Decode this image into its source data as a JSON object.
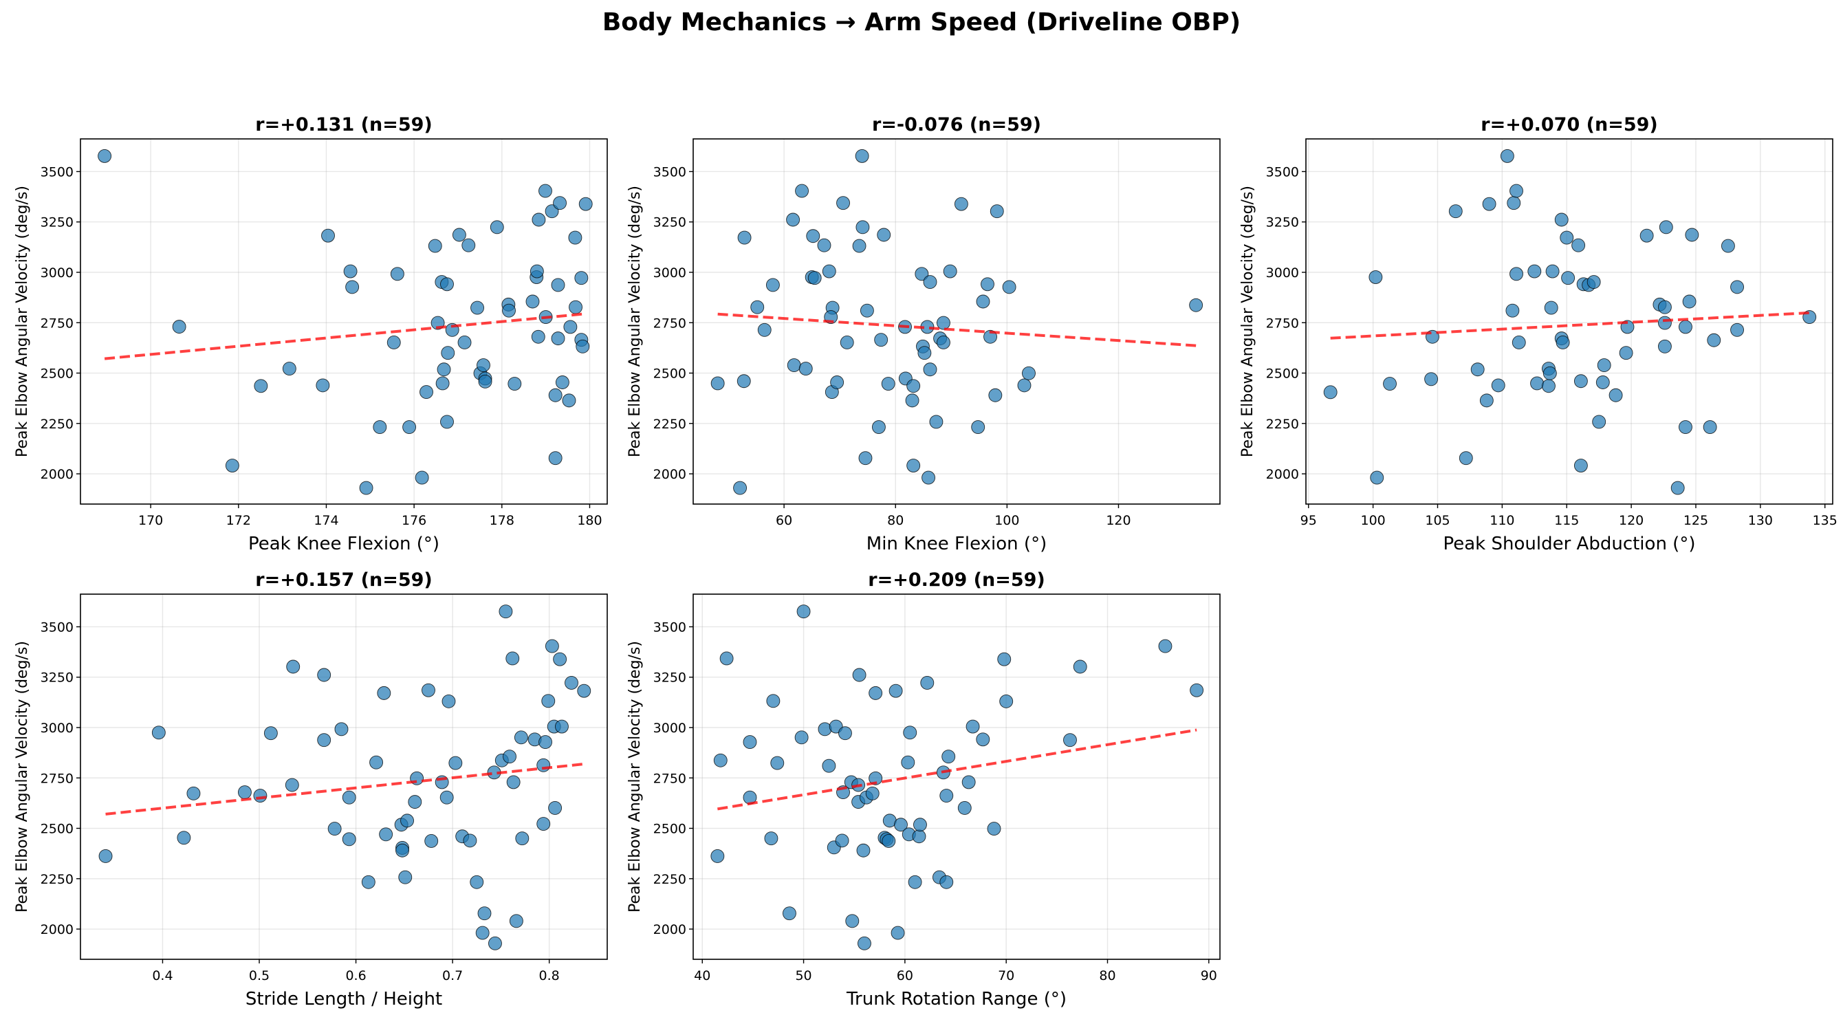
{
  "suptitle": "Body Mechanics → Arm Speed (Driveline OBP)",
  "colors": {
    "points": "#1f77b4",
    "point_edge": "#000000",
    "trendline": "#ff0000",
    "grid": "#b0b0b0"
  },
  "chart_data": [
    {
      "type": "scatter",
      "title": "r=+0.131  (n=59)",
      "xlabel": "Peak Knee Flexion (°)",
      "ylabel": "Peak Elbow Angular Velocity (deg/s)",
      "xlim": [
        168.4,
        180.4
      ],
      "ylim": [
        1850,
        3662
      ],
      "xticks": [
        170,
        172,
        174,
        176,
        178,
        180
      ],
      "yticks": [
        2000,
        2250,
        2500,
        2750,
        3000,
        3250,
        3500
      ],
      "grid": true,
      "trendline": "dashed linear fit",
      "x": [
        168.95,
        170.65,
        171.86,
        172.51,
        173.16,
        173.92,
        174.04,
        174.55,
        174.59,
        174.91,
        175.22,
        175.54,
        175.62,
        175.89,
        176.18,
        176.28,
        176.48,
        176.54,
        176.63,
        176.75,
        176.65,
        176.68,
        176.77,
        176.75,
        176.87,
        177.03,
        177.15,
        177.24,
        177.44,
        177.51,
        177.58,
        177.62,
        177.62,
        177.89,
        178.15,
        178.16,
        178.29,
        178.7,
        178.79,
        178.8,
        178.84,
        178.83,
        178.99,
        179.0,
        179.14,
        179.32,
        179.28,
        179.28,
        179.38,
        179.22,
        179.22,
        179.53,
        179.56,
        179.67,
        179.68,
        179.81,
        179.81,
        179.84,
        179.91
      ],
      "y": [
        3577,
        2730,
        2041,
        2436,
        2522,
        2439,
        3182,
        3005,
        2927,
        1930,
        2232,
        2652,
        2992,
        2232,
        1981,
        2406,
        3131,
        2749,
        2952,
        2941,
        2449,
        2518,
        2600,
        2258,
        2714,
        3186,
        2652,
        3134,
        2824,
        2499,
        2539,
        2473,
        2458,
        3224,
        2840,
        2810,
        2447,
        2855,
        2976,
        3005,
        3261,
        2680,
        3404,
        2778,
        3303,
        3344,
        2937,
        2672,
        2454,
        2390,
        2078,
        2364,
        2729,
        3172,
        2827,
        2972,
        2665,
        2632,
        3339
      ]
    },
    {
      "type": "scatter",
      "title": "r=-0.076  (n=59)",
      "xlabel": "Min Knee Flexion (°)",
      "ylabel": "Peak Elbow Angular Velocity (deg/s)",
      "xlim": [
        43.7,
        138.2
      ],
      "ylim": [
        1850,
        3662
      ],
      "xticks": [
        60,
        80,
        100,
        120
      ],
      "yticks": [
        2000,
        2250,
        2500,
        2750,
        3000,
        3250,
        3500
      ],
      "grid": true,
      "trendline": "dashed linear fit",
      "x": [
        48.1,
        52.1,
        52.8,
        52.9,
        55.2,
        56.5,
        58.0,
        61.6,
        61.8,
        63.2,
        63.9,
        65.0,
        65.5,
        65.2,
        67.2,
        68.1,
        68.7,
        68.4,
        68.6,
        69.5,
        70.6,
        71.3,
        73.5,
        74.0,
        74.1,
        74.6,
        74.9,
        77.0,
        77.4,
        77.9,
        78.7,
        81.7,
        81.8,
        83.2,
        83.0,
        83.2,
        84.7,
        84.9,
        85.2,
        85.7,
        85.9,
        86.2,
        86.2,
        87.3,
        88.0,
        88.6,
        88.6,
        89.8,
        91.8,
        94.8,
        95.7,
        96.5,
        97.0,
        97.9,
        98.2,
        100.4,
        103.1,
        103.9,
        133.9
      ],
      "y": [
        2449,
        1930,
        2460,
        3172,
        2827,
        2714,
        2937,
        3261,
        2539,
        3404,
        2522,
        2976,
        2972,
        3180,
        3134,
        3005,
        2824,
        2778,
        2406,
        2454,
        3344,
        2652,
        3131,
        3577,
        3224,
        2078,
        2810,
        2232,
        2665,
        3186,
        2447,
        2729,
        2473,
        2436,
        2364,
        2041,
        2992,
        2632,
        2600,
        2729,
        1981,
        2952,
        2518,
        2258,
        2672,
        2749,
        2652,
        3005,
        3339,
        2232,
        2855,
        2941,
        2680,
        2390,
        3303,
        2927,
        2439,
        2499,
        2837
      ]
    },
    {
      "type": "scatter",
      "title": "r=+0.070  (n=59)",
      "xlabel": "Peak Shoulder Abduction (°)",
      "ylabel": "Peak Elbow Angular Velocity (deg/s)",
      "xlim": [
        94.8,
        135.6
      ],
      "ylim": [
        1850,
        3662
      ],
      "xticks": [
        95,
        100,
        105,
        110,
        115,
        120,
        125,
        130,
        135
      ],
      "yticks": [
        2000,
        2250,
        2500,
        2750,
        3000,
        3250,
        3500
      ],
      "grid": true,
      "trendline": "dashed linear fit",
      "x": [
        96.7,
        100.2,
        100.3,
        101.3,
        104.5,
        104.6,
        106.4,
        107.2,
        108.1,
        108.8,
        109.0,
        109.7,
        110.4,
        110.8,
        110.9,
        111.1,
        111.1,
        111.3,
        112.5,
        112.7,
        113.6,
        113.6,
        113.7,
        113.8,
        113.9,
        114.6,
        114.6,
        114.7,
        115.0,
        115.1,
        115.9,
        116.1,
        116.1,
        116.3,
        116.7,
        117.1,
        117.5,
        117.8,
        117.9,
        118.8,
        119.6,
        119.7,
        121.2,
        122.2,
        122.6,
        122.6,
        122.6,
        122.7,
        123.6,
        124.2,
        124.2,
        124.5,
        124.7,
        126.1,
        126.4,
        127.5,
        128.2,
        128.2,
        133.8
      ],
      "y": [
        2405,
        2976,
        1981,
        2447,
        2470,
        2680,
        3303,
        2078,
        2518,
        2364,
        3339,
        2439,
        3577,
        2810,
        3344,
        2992,
        3404,
        2652,
        3005,
        2449,
        2522,
        2436,
        2499,
        2824,
        3005,
        2672,
        3261,
        2652,
        3172,
        2972,
        3134,
        2460,
        2041,
        2941,
        2937,
        2952,
        2258,
        2454,
        2539,
        2390,
        2600,
        2729,
        3182,
        2840,
        2632,
        2749,
        2827,
        3224,
        1930,
        2729,
        2232,
        2855,
        3186,
        2232,
        2663,
        3131,
        2927,
        2714,
        2778
      ]
    },
    {
      "type": "scatter",
      "title": "r=+0.157  (n=59)",
      "xlabel": "Stride Length / Height",
      "ylabel": "Peak Elbow Angular Velocity (deg/s)",
      "xlim": [
        0.315,
        0.86
      ],
      "ylim": [
        1850,
        3662
      ],
      "xticks": [
        0.4,
        0.5,
        0.6,
        0.7,
        0.8
      ],
      "yticks": [
        2000,
        2250,
        2500,
        2750,
        3000,
        3250,
        3500
      ],
      "grid": true,
      "trendline": "dashed linear fit",
      "x": [
        0.341,
        0.396,
        0.422,
        0.432,
        0.485,
        0.501,
        0.512,
        0.534,
        0.535,
        0.567,
        0.567,
        0.578,
        0.585,
        0.593,
        0.593,
        0.613,
        0.621,
        0.629,
        0.631,
        0.647,
        0.648,
        0.648,
        0.651,
        0.653,
        0.661,
        0.663,
        0.675,
        0.678,
        0.689,
        0.694,
        0.696,
        0.703,
        0.71,
        0.718,
        0.725,
        0.733,
        0.731,
        0.743,
        0.744,
        0.751,
        0.755,
        0.759,
        0.762,
        0.763,
        0.766,
        0.771,
        0.772,
        0.785,
        0.794,
        0.794,
        0.796,
        0.799,
        0.803,
        0.805,
        0.806,
        0.811,
        0.813,
        0.823,
        0.836
      ],
      "y": [
        2362,
        2975,
        2453,
        2673,
        2679,
        2662,
        2972,
        2715,
        3302,
        3261,
        2938,
        2498,
        2992,
        2653,
        2446,
        2233,
        2827,
        3171,
        2470,
        2518,
        2403,
        2390,
        2257,
        2538,
        2631,
        2748,
        3185,
        2437,
        2729,
        2653,
        3130,
        2824,
        2460,
        2439,
        2233,
        2078,
        1981,
        2777,
        1929,
        2837,
        3576,
        2856,
        3343,
        2729,
        2040,
        2951,
        2450,
        2941,
        2813,
        2522,
        2928,
        3132,
        3404,
        3005,
        2601,
        3339,
        3005,
        3222,
        3182
      ]
    },
    {
      "type": "scatter",
      "title": "r=+0.209  (n=59)",
      "xlabel": "Trunk Rotation Range (°)",
      "ylabel": "Peak Elbow Angular Velocity (deg/s)",
      "xlim": [
        39.1,
        91.1
      ],
      "ylim": [
        1850,
        3662
      ],
      "xticks": [
        40,
        50,
        60,
        70,
        80,
        90
      ],
      "yticks": [
        2000,
        2250,
        2500,
        2750,
        3000,
        3250,
        3500
      ],
      "grid": true,
      "trendline": "dashed linear fit",
      "x": [
        41.5,
        41.8,
        42.4,
        44.7,
        44.7,
        46.8,
        47.0,
        47.4,
        48.6,
        49.8,
        50.0,
        52.1,
        52.5,
        53.0,
        53.2,
        53.8,
        53.9,
        54.1,
        54.7,
        54.8,
        55.4,
        55.4,
        55.5,
        55.9,
        56.0,
        56.2,
        56.8,
        57.1,
        57.1,
        58.0,
        58.2,
        58.4,
        58.5,
        59.1,
        59.3,
        59.6,
        60.3,
        60.4,
        60.5,
        61.0,
        61.4,
        61.5,
        62.2,
        63.4,
        63.8,
        64.1,
        64.1,
        64.3,
        65.9,
        66.3,
        66.7,
        67.7,
        68.8,
        69.8,
        70.0,
        76.3,
        77.3,
        85.7,
        88.8
      ],
      "y": [
        2362,
        2837,
        3343,
        2928,
        2653,
        2450,
        3132,
        2824,
        2078,
        2951,
        3576,
        2992,
        2810,
        2405,
        3005,
        2439,
        2679,
        2972,
        2729,
        2040,
        2715,
        2631,
        3261,
        2390,
        1929,
        2653,
        2673,
        3171,
        2748,
        2453,
        2446,
        2437,
        2538,
        3182,
        1981,
        2518,
        2827,
        2470,
        2975,
        2233,
        2460,
        2518,
        3222,
        2257,
        2777,
        2233,
        2662,
        2856,
        2601,
        2729,
        3005,
        2941,
        2498,
        3339,
        3130,
        2938,
        3302,
        3404,
        3185
      ]
    }
  ]
}
